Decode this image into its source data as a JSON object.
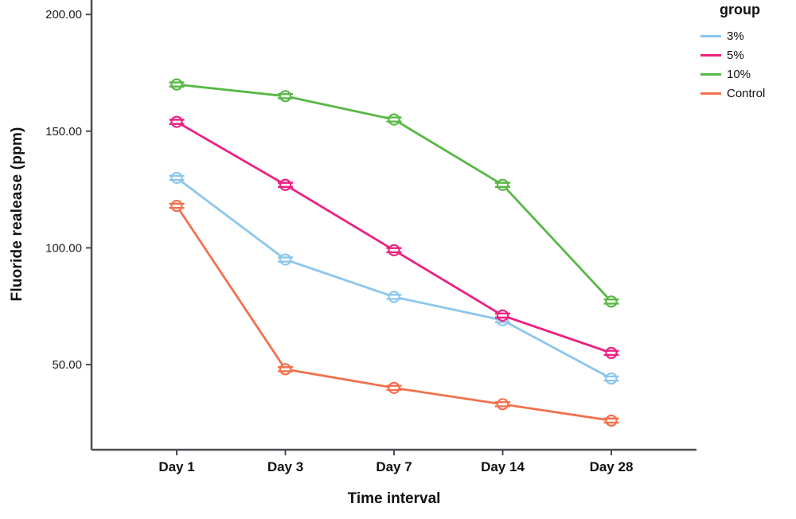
{
  "chart_data": {
    "type": "line",
    "title": "",
    "xlabel": "Time interval",
    "ylabel": "Fluoride realease (ppm)",
    "categories": [
      "Day 1",
      "Day 3",
      "Day 7",
      "Day 14",
      "Day 28"
    ],
    "series": [
      {
        "name": "3%",
        "color": "#8CC6EC",
        "values": [
          130,
          95,
          79,
          69,
          44
        ]
      },
      {
        "name": "5%",
        "color": "#EC2080",
        "values": [
          154,
          127,
          99,
          71,
          55
        ]
      },
      {
        "name": "10%",
        "color": "#58B846",
        "values": [
          170,
          165,
          155,
          127,
          77
        ]
      },
      {
        "name": "Control",
        "color": "#F2714D",
        "values": [
          118,
          48,
          40,
          33,
          26
        ]
      }
    ],
    "y_ticks": [
      50,
      100,
      150,
      200
    ],
    "y_tick_labels": [
      "50.00",
      "100.00",
      "150.00",
      "200.00"
    ],
    "ylim": [
      13.5,
      206.2
    ],
    "legend_title": "group",
    "legend_position": "top-right",
    "grid": false,
    "marker": "open-circle-with-error-caps",
    "axis_color": "#4a4f54"
  }
}
